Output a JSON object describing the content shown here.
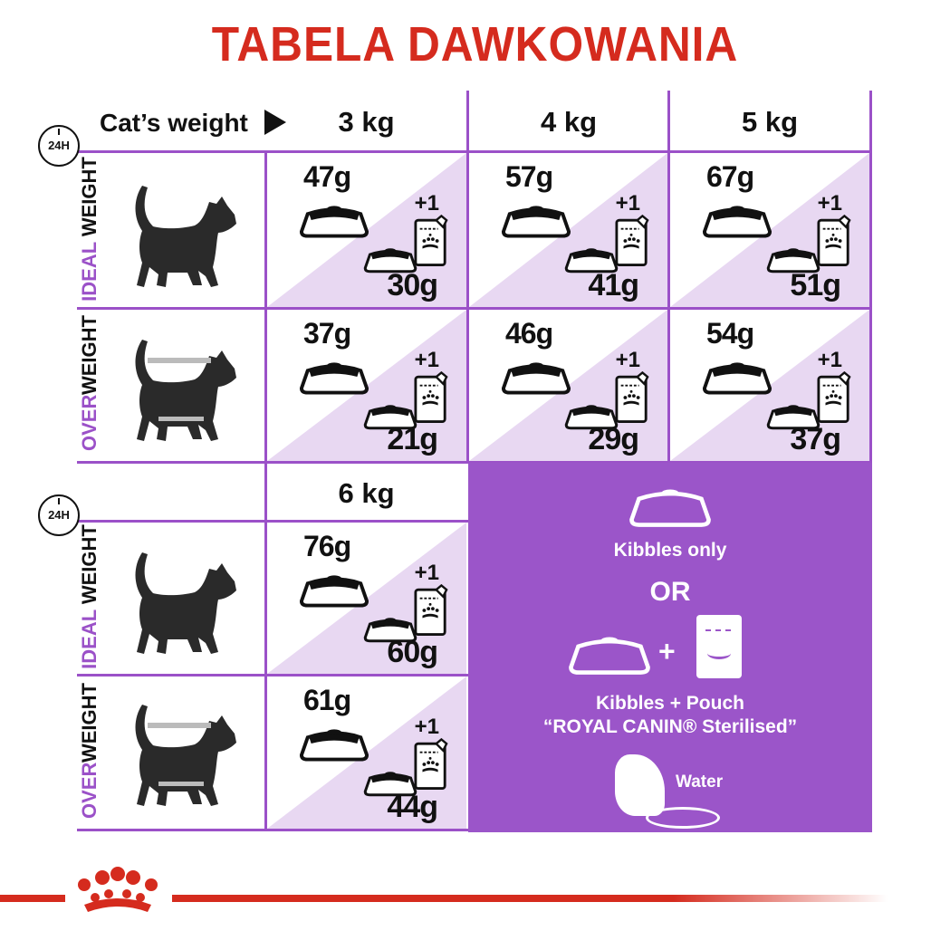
{
  "title": "TABELA DAWKOWANIA",
  "header": {
    "cats_weight": "Cat’s weight",
    "arrow_icon": "play-triangle"
  },
  "clock_label": "24H",
  "weights": [
    "3 kg",
    "4 kg",
    "5 kg",
    "6 kg"
  ],
  "row_labels": {
    "ideal": {
      "accent": "IDEAL",
      "rest": " WEIGHT"
    },
    "over": {
      "accent": "OVER",
      "rest": "WEIGHT"
    }
  },
  "plus_one": "+1",
  "table": {
    "ideal": [
      {
        "kibbles_only": "47g",
        "with_pouch": "30g"
      },
      {
        "kibbles_only": "57g",
        "with_pouch": "41g"
      },
      {
        "kibbles_only": "67g",
        "with_pouch": "51g"
      },
      {
        "kibbles_only": "76g",
        "with_pouch": "60g"
      }
    ],
    "over": [
      {
        "kibbles_only": "37g",
        "with_pouch": "21g"
      },
      {
        "kibbles_only": "46g",
        "with_pouch": "29g"
      },
      {
        "kibbles_only": "54g",
        "with_pouch": "37g"
      },
      {
        "kibbles_only": "61g",
        "with_pouch": "44g"
      }
    ]
  },
  "legend": {
    "kibbles_only": "Kibbles only",
    "or": "OR",
    "plus": "+",
    "kibbles_pouch": "Kibbles + Pouch",
    "product": "“ROYAL CANIN® Sterilised”",
    "water": "Water"
  },
  "colors": {
    "brand_red": "#d52b1e",
    "purple": "#9b51c8",
    "light_purple": "#e8d8f2",
    "panel": "#9b55c9"
  }
}
